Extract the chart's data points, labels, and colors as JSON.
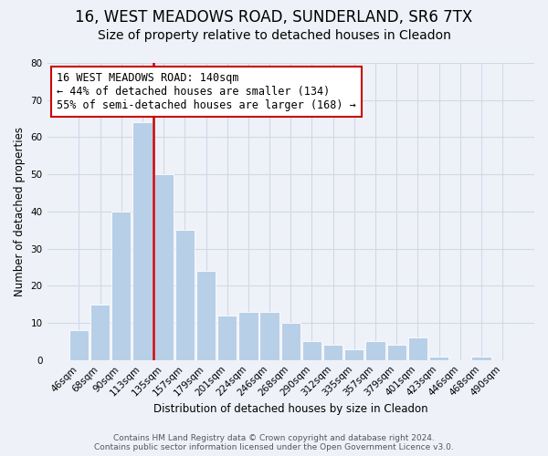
{
  "title": "16, WEST MEADOWS ROAD, SUNDERLAND, SR6 7TX",
  "subtitle": "Size of property relative to detached houses in Cleadon",
  "xlabel": "Distribution of detached houses by size in Cleadon",
  "ylabel": "Number of detached properties",
  "bar_labels": [
    "46sqm",
    "68sqm",
    "90sqm",
    "113sqm",
    "135sqm",
    "157sqm",
    "179sqm",
    "201sqm",
    "224sqm",
    "246sqm",
    "268sqm",
    "290sqm",
    "312sqm",
    "335sqm",
    "357sqm",
    "379sqm",
    "401sqm",
    "423sqm",
    "446sqm",
    "468sqm",
    "490sqm"
  ],
  "bar_heights": [
    8,
    15,
    40,
    64,
    50,
    35,
    24,
    12,
    13,
    13,
    10,
    5,
    4,
    3,
    5,
    4,
    6,
    1,
    0,
    1,
    0
  ],
  "bar_color": "#b8cfe8",
  "bar_edge_color": "#ffffff",
  "vline_color": "#cc0000",
  "annotation_text": "16 WEST MEADOWS ROAD: 140sqm\n← 44% of detached houses are smaller (134)\n55% of semi-detached houses are larger (168) →",
  "annotation_box_color": "#ffffff",
  "annotation_box_edge": "#cc0000",
  "ylim": [
    0,
    80
  ],
  "yticks": [
    0,
    10,
    20,
    30,
    40,
    50,
    60,
    70,
    80
  ],
  "grid_color": "#d0d8e8",
  "bg_color": "#eef2f8",
  "footer_line1": "Contains HM Land Registry data © Crown copyright and database right 2024.",
  "footer_line2": "Contains public sector information licensed under the Open Government Licence v3.0.",
  "title_fontsize": 12,
  "subtitle_fontsize": 10,
  "annotation_fontsize": 8.5,
  "axis_fontsize": 8.5,
  "tick_fontsize": 7.5,
  "footer_fontsize": 6.5
}
